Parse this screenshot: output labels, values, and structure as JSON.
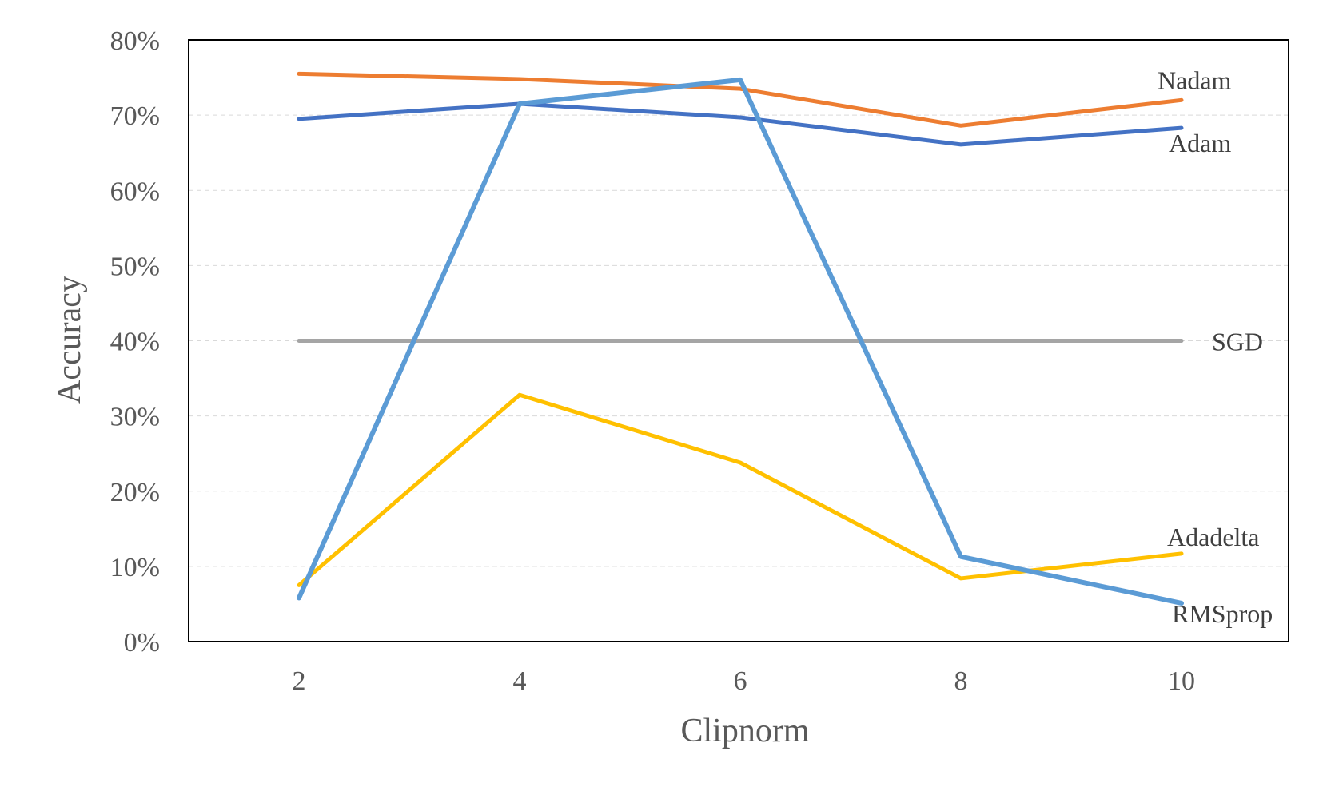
{
  "chart_data": {
    "type": "line",
    "title": "",
    "xlabel": "Clipnorm",
    "ylabel": "Accuracy",
    "x": [
      2,
      4,
      6,
      8,
      10
    ],
    "x_tick_labels": [
      "2",
      "4",
      "6",
      "8",
      "10"
    ],
    "y_tick_labels": [
      "0%",
      "10%",
      "20%",
      "30%",
      "40%",
      "50%",
      "60%",
      "70%",
      "80%"
    ],
    "ylim": [
      0,
      0.8
    ],
    "y_ticks": [
      0,
      0.1,
      0.2,
      0.3,
      0.4,
      0.5,
      0.6,
      0.7,
      0.8
    ],
    "grid": true,
    "legend": "inline labels at line ends",
    "series": [
      {
        "name": "Nadam",
        "color": "#ED7D31",
        "values": [
          0.755,
          0.748,
          0.735,
          0.686,
          0.72
        ]
      },
      {
        "name": "Adam",
        "color": "#4472C4",
        "values": [
          0.695,
          0.715,
          0.697,
          0.661,
          0.683
        ]
      },
      {
        "name": "SGD",
        "color": "#A5A5A5",
        "values": [
          0.4,
          0.4,
          0.4,
          0.4,
          0.4
        ]
      },
      {
        "name": "Adadelta",
        "color": "#FFC000",
        "values": [
          0.075,
          0.328,
          0.238,
          0.084,
          0.117
        ]
      },
      {
        "name": "RMSprop",
        "color": "#5B9BD5",
        "values": [
          0.058,
          0.715,
          0.747,
          0.113,
          0.051
        ]
      }
    ]
  }
}
